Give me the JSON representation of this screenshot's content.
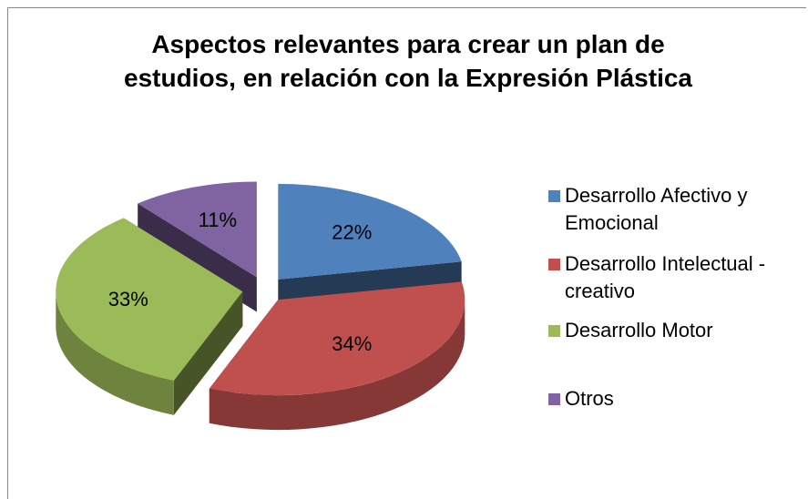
{
  "chart_data": {
    "type": "pie",
    "title": "Aspectos relevantes para crear un plan de estudios, en relación con la Expresión Plástica",
    "categories": [
      "Desarrollo Afectivo y Emocional",
      "Desarrollo Intelectual - creativo",
      "Desarrollo Motor",
      "Otros"
    ],
    "values": [
      22,
      34,
      33,
      11
    ],
    "value_labels": [
      "22%",
      "34%",
      "33%",
      "11%"
    ],
    "colors": [
      "#4f81bd",
      "#c0504d",
      "#9bbb59",
      "#8064a2"
    ],
    "legend": "right"
  }
}
